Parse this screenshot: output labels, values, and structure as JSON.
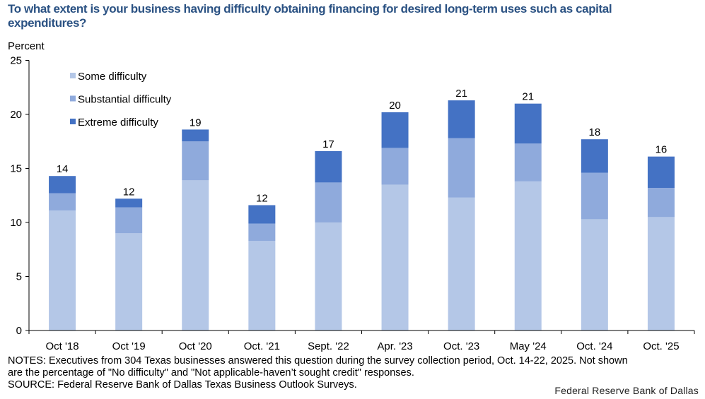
{
  "chart_data": {
    "type": "bar",
    "stacked": true,
    "title": "To what extent is your business having difficulty obtaining financing for desired long-term uses such as capital expenditures?",
    "ylabel": "Percent",
    "xlabel": "",
    "ylim": [
      0,
      25
    ],
    "yticks": [
      0,
      5,
      10,
      15,
      20,
      25
    ],
    "grid": false,
    "legend_position": "top-left",
    "categories": [
      "Oct '18",
      "Oct '19",
      "Oct '20",
      "Oct. '21",
      "Sept. '22",
      "Apr. '23",
      "Oct. '23",
      "May '24",
      "Oct. '24",
      "Oct. '25"
    ],
    "series": [
      {
        "name": "Some difficulty",
        "color": "#b4c7e7",
        "values": [
          11.1,
          9.0,
          13.9,
          8.3,
          10.0,
          13.5,
          12.3,
          13.8,
          10.3,
          10.5
        ]
      },
      {
        "name": "Substantial difficulty",
        "color": "#8faadc",
        "values": [
          1.6,
          2.4,
          3.6,
          1.6,
          3.7,
          3.4,
          5.5,
          3.5,
          4.3,
          2.7
        ]
      },
      {
        "name": "Extreme difficulty",
        "color": "#4472c4",
        "values": [
          1.6,
          0.8,
          1.1,
          1.7,
          2.9,
          3.3,
          3.5,
          3.7,
          3.1,
          2.9
        ]
      }
    ],
    "total_labels": [
      "14",
      "12",
      "19",
      "12",
      "17",
      "20",
      "21",
      "21",
      "18",
      "16"
    ]
  },
  "notes": {
    "line1": "NOTES: Executives from 304 Texas businesses answered this question during the survey collection period, Oct. 14-22, 2025. Not shown",
    "line2": "are the percentage of \"No difficulty\" and \"Not applicable-haven’t sought credit\" responses.",
    "source": "SOURCE: Federal Reserve Bank of Dallas Texas Business Outlook Surveys."
  },
  "credit": "Federal Reserve Bank of Dallas",
  "colors": {
    "title": "#2b5283"
  }
}
